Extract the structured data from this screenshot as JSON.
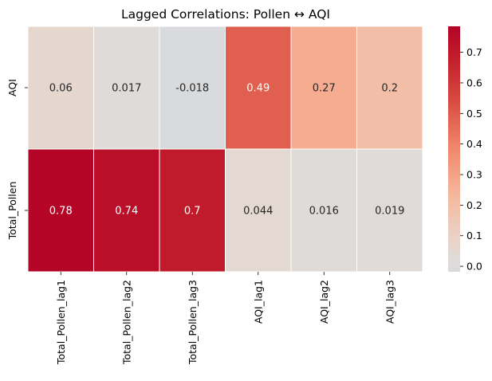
{
  "chart_data": {
    "type": "heatmap",
    "title": "Lagged Correlations: Pollen ↔ AQI",
    "xlabel": "",
    "ylabel": "",
    "columns": [
      "Total_Pollen_lag1",
      "Total_Pollen_lag2",
      "Total_Pollen_lag3",
      "AQI_lag1",
      "AQI_lag2",
      "AQI_lag3"
    ],
    "rows": [
      "AQI",
      "Total_Pollen"
    ],
    "values": [
      [
        0.06,
        0.017,
        -0.018,
        0.49,
        0.27,
        0.2
      ],
      [
        0.78,
        0.74,
        0.7,
        0.044,
        0.016,
        0.019
      ]
    ],
    "labels": [
      [
        "0.06",
        "0.017",
        "-0.018",
        "0.49",
        "0.27",
        "0.2"
      ],
      [
        "0.78",
        "0.74",
        "0.7",
        "0.044",
        "0.016",
        "0.019"
      ]
    ],
    "colormap": "coolwarm",
    "center": 0,
    "colorbar": {
      "range": [
        -0.018,
        0.785
      ],
      "ticks": [
        0.0,
        0.1,
        0.2,
        0.3,
        0.4,
        0.5,
        0.6,
        0.7
      ],
      "tick_labels": [
        "0.0",
        "0.1",
        "0.2",
        "0.3",
        "0.4",
        "0.5",
        "0.6",
        "0.7"
      ]
    },
    "grid": false,
    "cell_separator_color": "#ffffff",
    "text_colors": {
      "dark": "#262626",
      "light": "#ffffff"
    }
  }
}
